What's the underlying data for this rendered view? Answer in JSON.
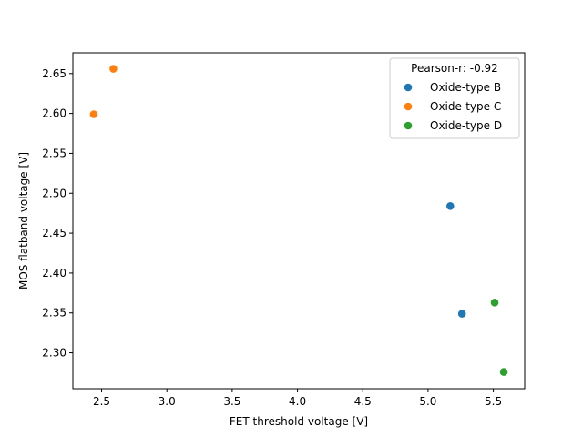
{
  "chart_data": {
    "type": "scatter",
    "title": "",
    "xlabel": "FET threshold voltage [V]",
    "ylabel": "MOS flatband voltage [V]",
    "xlim": [
      2.28,
      5.74
    ],
    "ylim": [
      2.255,
      2.676
    ],
    "xticks": [
      2.5,
      3.0,
      3.5,
      4.0,
      4.5,
      5.0,
      5.5
    ],
    "xtick_labels": [
      "2.5",
      "3.0",
      "3.5",
      "4.0",
      "4.5",
      "5.0",
      "5.5"
    ],
    "yticks": [
      2.3,
      2.35,
      2.4,
      2.45,
      2.5,
      2.55,
      2.6,
      2.65
    ],
    "ytick_labels": [
      "2.30",
      "2.35",
      "2.40",
      "2.45",
      "2.50",
      "2.55",
      "2.60",
      "2.65"
    ],
    "grid": false,
    "legend": {
      "title": "Pearson-r: -0.92",
      "placement": "top-right"
    },
    "series": [
      {
        "name": "Oxide-type B",
        "color": "#1f77b4",
        "points": [
          [
            5.17,
            2.484
          ],
          [
            5.26,
            2.349
          ]
        ]
      },
      {
        "name": "Oxide-type C",
        "color": "#ff7f0e",
        "points": [
          [
            2.59,
            2.656
          ],
          [
            2.44,
            2.599
          ]
        ]
      },
      {
        "name": "Oxide-type D",
        "color": "#2ca02c",
        "points": [
          [
            5.51,
            2.363
          ],
          [
            5.58,
            2.276
          ]
        ]
      }
    ]
  }
}
